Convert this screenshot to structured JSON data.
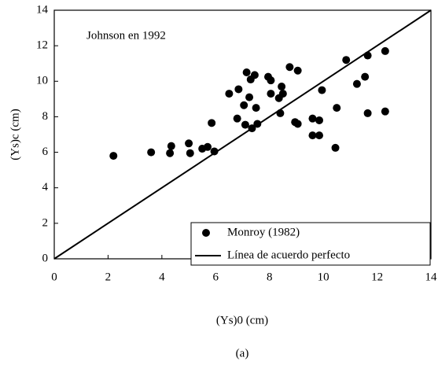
{
  "chart_data": {
    "type": "scatter",
    "annotation": "Johnson en 1992",
    "xlabel": "(Ys)0 (cm)",
    "ylabel": "(Ys)c (cm)",
    "caption": "(a)",
    "xlim": [
      0,
      14
    ],
    "xticks": [
      0,
      2,
      4,
      6,
      8,
      10,
      12,
      14
    ],
    "ylim": [
      0,
      14
    ],
    "yticks": [
      0,
      2,
      4,
      6,
      8,
      10,
      12,
      14
    ],
    "grid": false,
    "legend": "lower right",
    "series": [
      {
        "name": "Monroy (1982)",
        "type": "scatter",
        "color": "#000000",
        "x": [
          2.2,
          3.6,
          4.3,
          4.35,
          5.0,
          5.05,
          5.5,
          5.7,
          5.85,
          5.95,
          6.5,
          6.8,
          6.85,
          7.05,
          7.1,
          7.15,
          7.25,
          7.3,
          7.35,
          7.45,
          7.5,
          7.55,
          7.95,
          8.05,
          8.05,
          8.35,
          8.4,
          8.45,
          8.5,
          8.75,
          8.95,
          9.05,
          9.05,
          9.6,
          9.6,
          9.85,
          9.85,
          9.95,
          10.45,
          10.5,
          10.85,
          11.25,
          11.55,
          11.65,
          11.65,
          12.3,
          12.3
        ],
        "values": [
          5.8,
          6.0,
          5.95,
          6.35,
          6.5,
          5.95,
          6.2,
          6.3,
          7.65,
          6.05,
          9.3,
          7.9,
          9.55,
          8.65,
          7.55,
          10.5,
          9.1,
          10.1,
          7.35,
          10.35,
          8.5,
          7.6,
          10.25,
          9.3,
          10.05,
          9.05,
          8.2,
          9.7,
          9.3,
          10.8,
          7.7,
          7.6,
          10.6,
          7.9,
          6.95,
          7.8,
          6.95,
          9.5,
          6.25,
          8.5,
          11.2,
          9.85,
          10.25,
          11.45,
          8.2,
          11.7,
          8.3
        ]
      },
      {
        "name": "Línea de acuerdo perfecto",
        "type": "line",
        "color": "#000000",
        "x": [
          0,
          14
        ],
        "values": [
          0,
          14
        ]
      }
    ]
  }
}
